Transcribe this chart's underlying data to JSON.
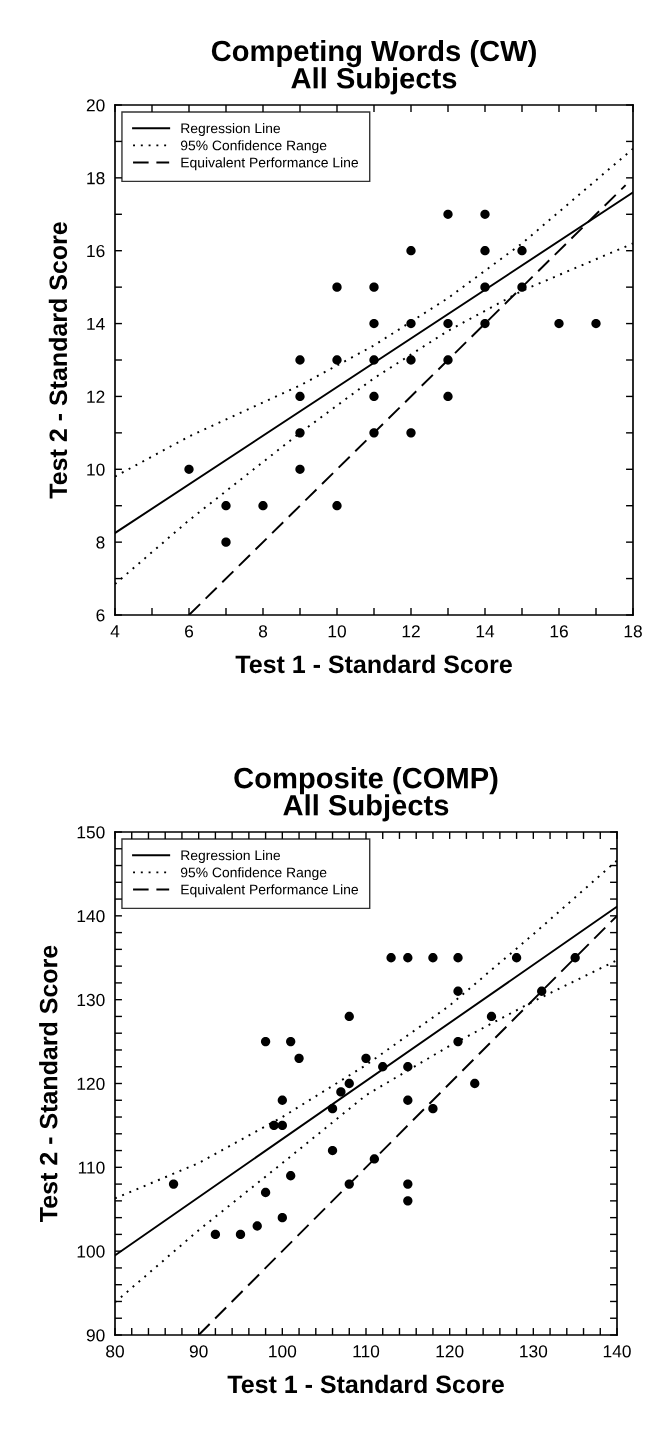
{
  "chart_data": [
    {
      "type": "scatter",
      "title": "Competing Words (CW)\nAll Subjects",
      "xlabel": "Test 1 - Standard Score",
      "ylabel": "Test 2 - Standard Score",
      "xlim": [
        4,
        18
      ],
      "ylim": [
        6,
        20
      ],
      "xticks": [
        4,
        {
          "value": 5,
          "label": null
        },
        6,
        {
          "value": 7,
          "label": null
        },
        8,
        {
          "value": 9,
          "label": null
        },
        10,
        {
          "value": 11,
          "label": null
        },
        12,
        {
          "value": 13,
          "label": null
        },
        14,
        {
          "value": 15,
          "label": null
        },
        16,
        {
          "value": 17,
          "label": null
        },
        18
      ],
      "yticks": [
        6,
        {
          "value": 7,
          "label": null
        },
        8,
        {
          "value": 9,
          "label": null
        },
        10,
        {
          "value": 11,
          "label": null
        },
        12,
        {
          "value": 13,
          "label": null
        },
        14,
        {
          "value": 15,
          "label": null
        },
        16,
        {
          "value": 17,
          "label": null
        },
        18,
        {
          "value": 19,
          "label": null
        },
        20
      ],
      "grid": false,
      "legend": "top left",
      "series": [
        {
          "color": "#000000",
          "marker": "circle",
          "x": [
            6,
            7,
            7,
            8,
            9,
            9,
            9,
            9,
            10,
            10,
            10,
            11,
            11,
            11,
            11,
            11,
            12,
            12,
            12,
            12,
            13,
            13,
            13,
            13,
            14,
            14,
            14,
            14,
            15,
            15,
            16,
            17
          ],
          "values": [
            10,
            9,
            8,
            9,
            13,
            12,
            11,
            10,
            15,
            13,
            9,
            15,
            14,
            13,
            12,
            11,
            16,
            14,
            13,
            11,
            17,
            14,
            13,
            12,
            17,
            16,
            15,
            14,
            16,
            15,
            14,
            14
          ]
        },
        {
          "type": "line",
          "name": "Regression Line",
          "color": "#000000",
          "line_style": "solid",
          "marker": "none",
          "x": [
            4,
            18
          ],
          "values": [
            8.25,
            17.6
          ]
        },
        {
          "type": "line",
          "name": "95% Confidence Range",
          "color": "#000000",
          "line_style": "dotted",
          "marker": "none",
          "x": [
            4,
            6,
            9,
            11,
            13,
            15,
            18
          ],
          "values": [
            9.8,
            10.9,
            12.3,
            13.4,
            14.7,
            16.2,
            18.8
          ]
        },
        {
          "type": "line",
          "color": "#000000",
          "line_style": "dotted",
          "marker": "none",
          "x": [
            4,
            6,
            9,
            11,
            13,
            15,
            18
          ],
          "values": [
            6.85,
            8.6,
            11.0,
            12.5,
            13.8,
            14.9,
            16.2
          ]
        },
        {
          "type": "line",
          "name": "Equivalent Performance Line",
          "color": "#000000",
          "line_style": "dashed",
          "marker": "none",
          "x": [
            6,
            17.8
          ],
          "values": [
            6,
            17.8
          ]
        }
      ]
    },
    {
      "type": "scatter",
      "title": "Composite (COMP)\nAll Subjects",
      "xlabel": "Test 1 - Standard Score",
      "ylabel": "Test 2 - Standard Score",
      "xlim": [
        80,
        140
      ],
      "ylim": [
        90,
        150
      ],
      "xticks": [
        80,
        {
          "value": 82,
          "label": null
        },
        {
          "value": 84,
          "label": null
        },
        {
          "value": 86,
          "label": null
        },
        {
          "value": 88,
          "label": null
        },
        90,
        {
          "value": 92,
          "label": null
        },
        {
          "value": 94,
          "label": null
        },
        {
          "value": 96,
          "label": null
        },
        {
          "value": 98,
          "label": null
        },
        100,
        {
          "value": 102,
          "label": null
        },
        {
          "value": 104,
          "label": null
        },
        {
          "value": 106,
          "label": null
        },
        {
          "value": 108,
          "label": null
        },
        110,
        {
          "value": 112,
          "label": null
        },
        {
          "value": 114,
          "label": null
        },
        {
          "value": 116,
          "label": null
        },
        {
          "value": 118,
          "label": null
        },
        120,
        {
          "value": 122,
          "label": null
        },
        {
          "value": 124,
          "label": null
        },
        {
          "value": 126,
          "label": null
        },
        {
          "value": 128,
          "label": null
        },
        130,
        {
          "value": 132,
          "label": null
        },
        {
          "value": 134,
          "label": null
        },
        {
          "value": 136,
          "label": null
        },
        {
          "value": 138,
          "label": null
        },
        140
      ],
      "yticks": [
        90,
        {
          "value": 92,
          "label": null
        },
        {
          "value": 94,
          "label": null
        },
        {
          "value": 96,
          "label": null
        },
        {
          "value": 98,
          "label": null
        },
        100,
        {
          "value": 102,
          "label": null
        },
        {
          "value": 104,
          "label": null
        },
        {
          "value": 106,
          "label": null
        },
        {
          "value": 108,
          "label": null
        },
        110,
        {
          "value": 112,
          "label": null
        },
        {
          "value": 114,
          "label": null
        },
        {
          "value": 116,
          "label": null
        },
        {
          "value": 118,
          "label": null
        },
        120,
        {
          "value": 122,
          "label": null
        },
        {
          "value": 124,
          "label": null
        },
        {
          "value": 126,
          "label": null
        },
        {
          "value": 128,
          "label": null
        },
        130,
        {
          "value": 132,
          "label": null
        },
        {
          "value": 134,
          "label": null
        },
        {
          "value": 136,
          "label": null
        },
        {
          "value": 138,
          "label": null
        },
        140,
        {
          "value": 142,
          "label": null
        },
        {
          "value": 144,
          "label": null
        },
        {
          "value": 146,
          "label": null
        },
        {
          "value": 148,
          "label": null
        },
        150
      ],
      "grid": false,
      "legend": "top left",
      "series": [
        {
          "color": "#000000",
          "marker": "circle",
          "x": [
            87,
            92,
            95,
            97,
            98,
            98,
            99,
            100,
            100,
            100,
            101,
            101,
            102,
            106,
            106,
            107,
            108,
            108,
            108,
            110,
            111,
            112,
            113,
            115,
            115,
            115,
            115,
            115,
            118,
            118,
            121,
            121,
            121,
            123,
            125,
            128,
            131,
            135
          ],
          "values": [
            108,
            102,
            102,
            103,
            107,
            125,
            115,
            115,
            118,
            104,
            125,
            109,
            123,
            117,
            112,
            119,
            120,
            128,
            108,
            123,
            111,
            122,
            135,
            135,
            122,
            118,
            108,
            106,
            135,
            117,
            135,
            131,
            125,
            120,
            128,
            135,
            131,
            135
          ]
        },
        {
          "type": "line",
          "name": "Regression Line",
          "color": "#000000",
          "line_style": "solid",
          "marker": "none",
          "x": [
            80,
            140
          ],
          "values": [
            99.5,
            141.1
          ]
        },
        {
          "type": "line",
          "name": "95% Confidence Range",
          "color": "#000000",
          "line_style": "dotted",
          "marker": "none",
          "x": [
            80,
            90,
            100,
            110,
            120,
            130,
            140
          ],
          "values": [
            106.3,
            110.5,
            116,
            122.2,
            129.3,
            137.8,
            146.6
          ]
        },
        {
          "type": "line",
          "color": "#000000",
          "line_style": "dotted",
          "marker": "none",
          "x": [
            80,
            90,
            100,
            110,
            120,
            130,
            140
          ],
          "values": [
            93.9,
            102.5,
            110.5,
            118.6,
            124.5,
            129.8,
            134.7
          ]
        },
        {
          "type": "line",
          "name": "Equivalent Performance Line",
          "color": "#000000",
          "line_style": "dashed",
          "marker": "none",
          "x": [
            90,
            140
          ],
          "values": [
            90,
            140
          ]
        }
      ]
    }
  ]
}
